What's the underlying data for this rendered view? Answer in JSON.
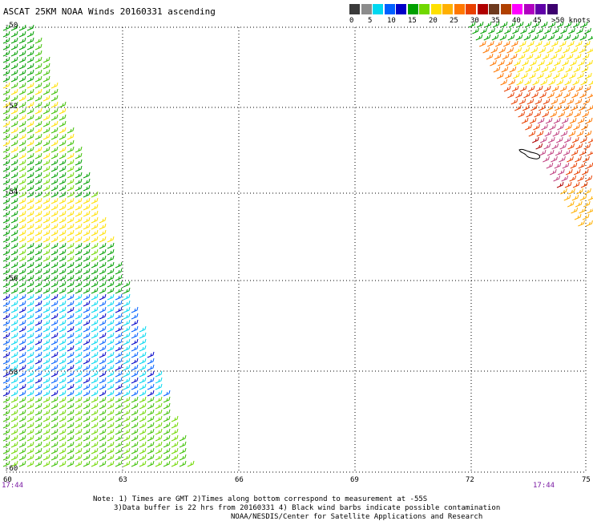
{
  "title": "ASCAT 25KM NOAA Winds 20160331 ascending",
  "legend": {
    "labels": [
      "0",
      "5",
      "10",
      "15",
      "20",
      "25",
      "30",
      "35",
      "40",
      "45",
      ">50 knots"
    ],
    "colors": [
      "#3a3a3a",
      "#8c8c8c",
      "#00d8f0",
      "#0060ff",
      "#0000c8",
      "#00a000",
      "#70d800",
      "#ffe000",
      "#ffb000",
      "#ff7800",
      "#e84000",
      "#b00000",
      "#6e3a1e",
      "#b04000",
      "#ff00ff",
      "#b000c0",
      "#6000a8",
      "#3c006e"
    ]
  },
  "axes": {
    "lat_labels": [
      "-50",
      "-52",
      "-54",
      "-56",
      "-58",
      "-60"
    ],
    "lon_labels": [
      "60",
      "63",
      "66",
      "69",
      "72",
      "75"
    ]
  },
  "times": {
    "left": "17:44",
    "right": "17:44"
  },
  "notes": [
    "Note: 1) Times are GMT 2)Times along bottom correspond to measurement at -55S",
    "3)Data buffer is 22 hrs from 20160331 4) Black wind barbs indicate possible contamination",
    "NOAA/NESDIS/Center for Satellite Applications and Research"
  ],
  "swaths": {
    "left_colors": [
      "#00a000",
      "#3cc000",
      "#70d800",
      "#ffe000",
      "#0000c8",
      "#0060ff",
      "#00d8f0"
    ],
    "right_colors": [
      "#00a000",
      "#ffe000",
      "#ffb000",
      "#ff7800",
      "#e84000",
      "#b00000",
      "#c04080"
    ]
  }
}
